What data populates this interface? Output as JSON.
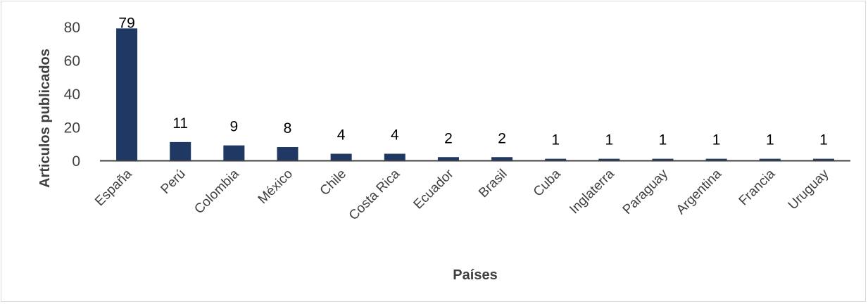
{
  "chart_data": {
    "type": "bar",
    "title": "",
    "xlabel": "Países",
    "ylabel": "Articulos publicados",
    "categories": [
      "España",
      "Perú",
      "Colombia",
      "México",
      "Chile",
      "Costa Rica",
      "Ecuador",
      "Brasil",
      "Cuba",
      "Inglaterra",
      "Paraguay",
      "Argentina",
      "Francia",
      "Uruguay"
    ],
    "values": [
      79,
      11,
      9,
      8,
      4,
      4,
      2,
      2,
      1,
      1,
      1,
      1,
      1,
      1
    ],
    "yticks": [
      0,
      20,
      40,
      60,
      80
    ],
    "ylim": [
      0,
      80
    ],
    "grid": false,
    "data_labels": true,
    "bar_color": "#1f3864",
    "axis_color": "#404040"
  }
}
